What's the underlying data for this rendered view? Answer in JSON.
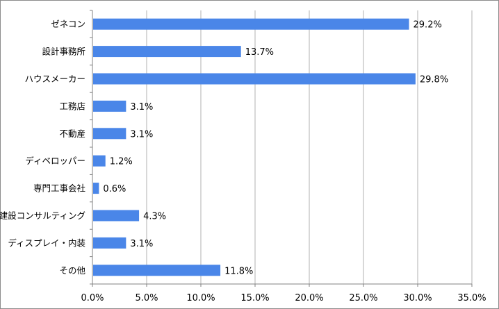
{
  "chart_data": {
    "type": "bar",
    "orientation": "horizontal",
    "categories": [
      "ゼネコン",
      "設計事務所",
      "ハウスメーカー",
      "工務店",
      "不動産",
      "ディベロッパー",
      "専門工事会社",
      "建設コンサルティング",
      "ディスプレイ・内装",
      "その他"
    ],
    "values": [
      29.2,
      13.7,
      29.8,
      3.1,
      3.1,
      1.2,
      0.6,
      4.3,
      3.1,
      11.8
    ],
    "data_labels": [
      "29.2%",
      "13.7%",
      "29.8%",
      "3.1%",
      "3.1%",
      "1.2%",
      "0.6%",
      "4.3%",
      "3.1%",
      "11.8%"
    ],
    "x_ticks": [
      0,
      5,
      10,
      15,
      20,
      25,
      30,
      35
    ],
    "x_tick_labels": [
      "0.0%",
      "5.0%",
      "10.0%",
      "15.0%",
      "20.0%",
      "25.0%",
      "30.0%",
      "35.0%"
    ],
    "xlim": [
      0,
      35
    ],
    "grid": true,
    "bar_color": "#4a86e8",
    "title": "",
    "xlabel": "",
    "ylabel": ""
  }
}
